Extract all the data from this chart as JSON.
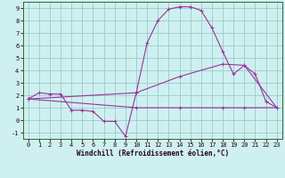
{
  "xlabel": "Windchill (Refroidissement éolien,°C)",
  "bg_color": "#cff0f0",
  "grid_color": "#99cccc",
  "line_color": "#993399",
  "spine_color": "#336633",
  "xlim": [
    -0.5,
    23.5
  ],
  "ylim": [
    -1.5,
    9.5
  ],
  "xticks": [
    0,
    1,
    2,
    3,
    4,
    5,
    6,
    7,
    8,
    9,
    10,
    11,
    12,
    13,
    14,
    15,
    16,
    17,
    18,
    19,
    20,
    21,
    22,
    23
  ],
  "yticks": [
    -1,
    0,
    1,
    2,
    3,
    4,
    5,
    6,
    7,
    8,
    9
  ],
  "line1_x": [
    0,
    1,
    2,
    3,
    4,
    5,
    6,
    7,
    8,
    9,
    10,
    11,
    12,
    13,
    14,
    15,
    16,
    17,
    18,
    19,
    20,
    21,
    22,
    23
  ],
  "line1_y": [
    1.7,
    2.2,
    2.1,
    2.1,
    0.8,
    0.8,
    0.7,
    -0.1,
    -0.1,
    -1.3,
    2.2,
    6.2,
    8.0,
    8.9,
    9.1,
    9.1,
    8.8,
    7.4,
    5.5,
    3.7,
    4.4,
    3.7,
    1.5,
    1.0
  ],
  "line2_x": [
    0,
    10,
    14,
    18,
    20,
    23
  ],
  "line2_y": [
    1.7,
    2.2,
    3.5,
    4.5,
    4.4,
    1.0
  ],
  "line3_x": [
    0,
    10,
    14,
    18,
    20,
    23
  ],
  "line3_y": [
    1.7,
    1.0,
    1.0,
    1.0,
    1.0,
    1.0
  ],
  "lw": 0.8,
  "ms": 3.0,
  "xlabel_fontsize": 5.5,
  "tick_fontsize": 5.0
}
